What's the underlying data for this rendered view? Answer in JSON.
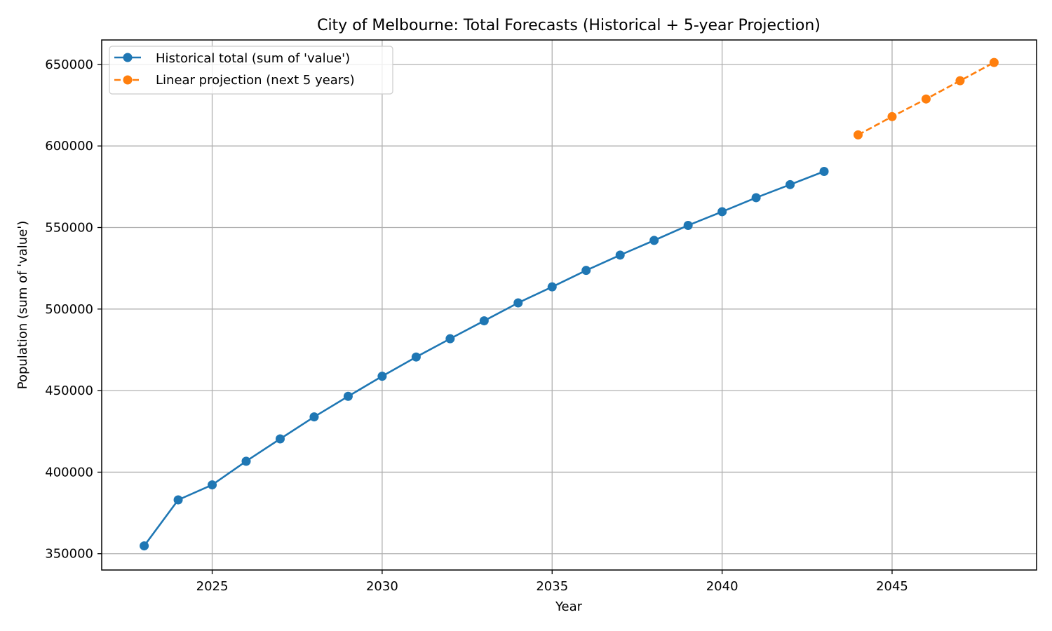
{
  "chart_data": {
    "type": "line",
    "title": "City of Melbourne: Total Forecasts (Historical + 5-year Projection)",
    "xlabel": "Year",
    "ylabel": "Population (sum of 'value')",
    "xlim": [
      2021.75,
      2049.25
    ],
    "ylim": [
      340000,
      665000
    ],
    "x_ticks": [
      2025,
      2030,
      2035,
      2040,
      2045
    ],
    "y_ticks": [
      350000,
      400000,
      450000,
      500000,
      550000,
      600000,
      650000
    ],
    "grid": true,
    "legend_position": "top-left",
    "series": [
      {
        "name": "Historical total (sum of 'value')",
        "color": "#1f77b4",
        "line_style": "solid",
        "marker": "circle",
        "x": [
          2023,
          2024,
          2025,
          2026,
          2027,
          2028,
          2029,
          2030,
          2031,
          2032,
          2033,
          2034,
          2035,
          2036,
          2037,
          2038,
          2039,
          2040,
          2041,
          2042,
          2043
        ],
        "y": [
          354800,
          383000,
          392200,
          406700,
          420400,
          433900,
          446500,
          458800,
          470600,
          481800,
          492800,
          503800,
          513600,
          523700,
          533100,
          542100,
          551300,
          559700,
          568300,
          576300,
          584400
        ]
      },
      {
        "name": "Linear projection (next 5 years)",
        "color": "#ff7f0e",
        "line_style": "dashed",
        "marker": "circle",
        "x": [
          2044,
          2045,
          2046,
          2047,
          2048
        ],
        "y": [
          606800,
          618000,
          628800,
          640000,
          651200
        ]
      }
    ]
  }
}
